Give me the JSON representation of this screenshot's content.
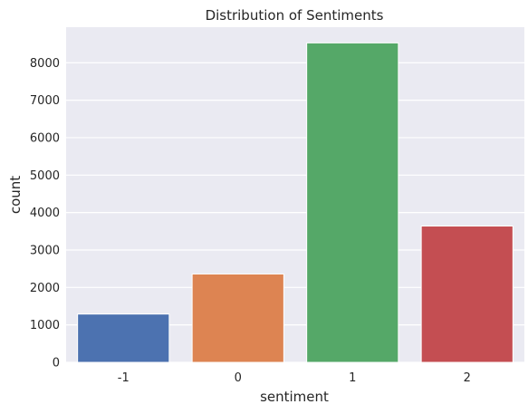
{
  "chart_data": {
    "type": "bar",
    "title": "Distribution of Sentiments",
    "xlabel": "sentiment",
    "ylabel": "count",
    "categories": [
      "-1",
      "0",
      "1",
      "2"
    ],
    "values": [
      1290,
      2360,
      8530,
      3640
    ],
    "colors": [
      "#4c72b0",
      "#dd8452",
      "#55a868",
      "#c44e52"
    ],
    "ylim": [
      0,
      8950
    ],
    "yticks": [
      0,
      1000,
      2000,
      3000,
      4000,
      5000,
      6000,
      7000,
      8000
    ],
    "grid": true,
    "background": "#eaeaf2"
  }
}
